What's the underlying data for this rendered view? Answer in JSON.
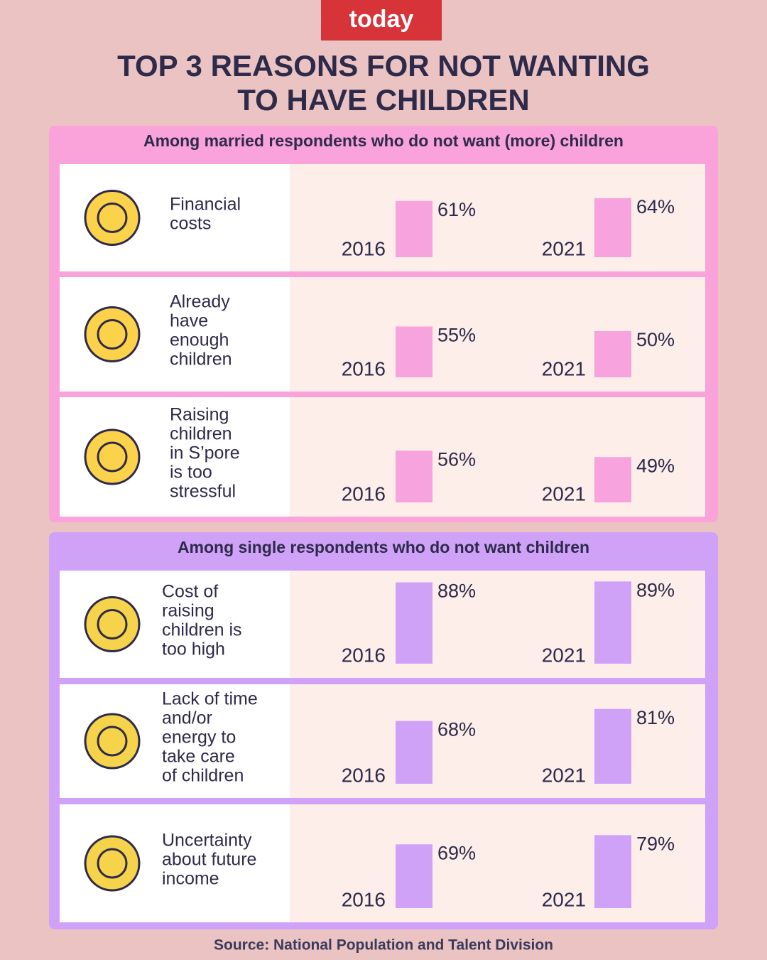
{
  "logo": "today",
  "title": [
    "TOP 3 REASONS FOR NOT WANTING",
    "TO HAVE CHILDREN"
  ],
  "sections": [
    {
      "heading": "Among married respondents who do not want (more) children",
      "color": "#f9a3da",
      "bar_color": "#f7a3dd",
      "rows": [
        {
          "label": [
            "Financial",
            "costs"
          ],
          "categories": [
            "2016",
            "2021"
          ],
          "values": [
            61,
            64
          ],
          "value_labels": [
            "61%",
            "64%"
          ]
        },
        {
          "label": [
            "Already",
            "have",
            "enough",
            "children"
          ],
          "categories": [
            "2016",
            "2021"
          ],
          "values": [
            55,
            50
          ],
          "value_labels": [
            "55%",
            "50%"
          ]
        },
        {
          "label": [
            "Raising",
            "children",
            "in S’pore",
            "is too",
            "stressful"
          ],
          "categories": [
            "2016",
            "2021"
          ],
          "values": [
            56,
            49
          ],
          "value_labels": [
            "56%",
            "49%"
          ]
        }
      ]
    },
    {
      "heading": "Among single respondents who do not want children",
      "color": "#cfa2f7",
      "bar_color": "#cfa2f7",
      "rows": [
        {
          "label": [
            "Cost of",
            "raising",
            "children is",
            "too high"
          ],
          "categories": [
            "2016",
            "2021"
          ],
          "values": [
            88,
            89
          ],
          "value_labels": [
            "88%",
            "89%"
          ]
        },
        {
          "label": [
            "Lack of time",
            "and/or",
            "energy to",
            "take care",
            "of children"
          ],
          "categories": [
            "2016",
            "2021"
          ],
          "values": [
            68,
            81
          ],
          "value_labels": [
            "68%",
            "81%"
          ]
        },
        {
          "label": [
            "Uncertainty",
            "about future",
            "income"
          ],
          "categories": [
            "2016",
            "2021"
          ],
          "values": [
            69,
            79
          ],
          "value_labels": [
            "69%",
            "79%"
          ]
        }
      ]
    }
  ],
  "source": "Source: National Population and Talent Division"
}
